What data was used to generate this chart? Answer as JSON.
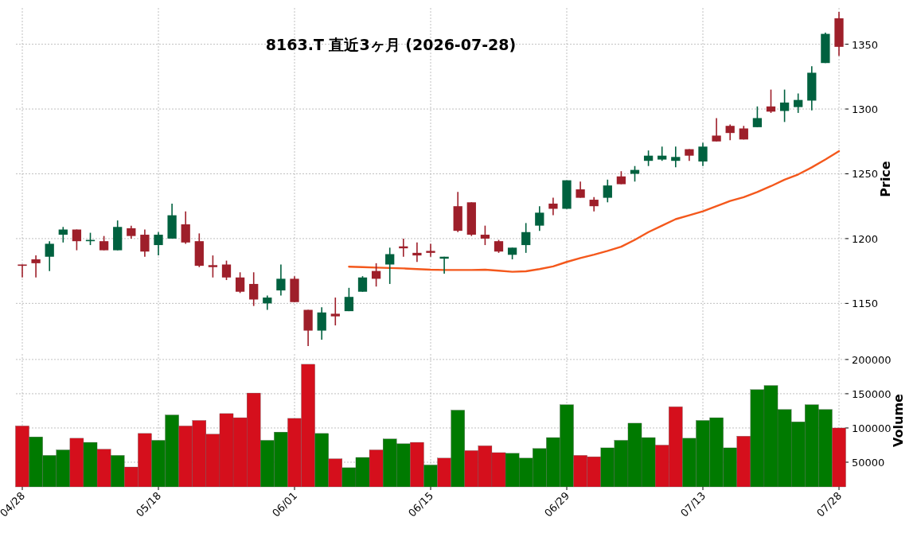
{
  "chart_data": [
    {
      "type": "candlestick",
      "title": "8163.T  直近3ヶ月  (2026-07-28)",
      "ylabel": "Price",
      "ohlc": [
        [
          1180,
          1180,
          1170,
          1179
        ],
        [
          1184,
          1187,
          1170,
          1181
        ],
        [
          1186,
          1198,
          1175,
          1196
        ],
        [
          1203,
          1209,
          1197,
          1207
        ],
        [
          1207,
          1207,
          1191,
          1198
        ],
        [
          1198,
          1204.5,
          1195,
          1199
        ],
        [
          1198,
          1202,
          1191,
          1191
        ],
        [
          1191,
          1214,
          1191,
          1209
        ],
        [
          1208,
          1210,
          1200,
          1202
        ],
        [
          1203,
          1207,
          1186,
          1190
        ],
        [
          1195,
          1205,
          1187,
          1203
        ],
        [
          1200,
          1227,
          1200,
          1218
        ],
        [
          1211,
          1221,
          1196,
          1197
        ],
        [
          1198,
          1204,
          1178,
          1179
        ],
        [
          1179.5,
          1187,
          1170,
          1178
        ],
        [
          1180,
          1183,
          1168,
          1170
        ],
        [
          1170,
          1174,
          1158,
          1159
        ],
        [
          1165,
          1174,
          1148,
          1153
        ],
        [
          1150,
          1156,
          1145,
          1154.5
        ],
        [
          1160,
          1180,
          1156,
          1169
        ],
        [
          1169,
          1171,
          1151,
          1151
        ],
        [
          1145,
          1145,
          1117,
          1129
        ],
        [
          1129,
          1147,
          1122,
          1143
        ],
        [
          1142,
          1154.5,
          1133,
          1140
        ],
        [
          1144,
          1162,
          1144,
          1155
        ],
        [
          1159,
          1171,
          1159,
          1170
        ],
        [
          1175,
          1181,
          1163,
          1169
        ],
        [
          1180,
          1193,
          1165,
          1188
        ],
        [
          1194,
          1200,
          1186,
          1192.5
        ],
        [
          1189,
          1197,
          1182,
          1187
        ],
        [
          1190.5,
          1196,
          1186,
          1189
        ],
        [
          1184.5,
          1186,
          1173,
          1186
        ],
        [
          1225,
          1236,
          1205,
          1206
        ],
        [
          1228,
          1228,
          1202,
          1203
        ],
        [
          1203,
          1210,
          1195,
          1200
        ],
        [
          1198,
          1199,
          1189,
          1190
        ],
        [
          1187.5,
          1193,
          1184,
          1193
        ],
        [
          1195,
          1212,
          1189,
          1205
        ],
        [
          1210,
          1225,
          1206,
          1220
        ],
        [
          1227,
          1231.5,
          1218,
          1223
        ],
        [
          1223,
          1245,
          1223,
          1245
        ],
        [
          1238,
          1244,
          1231.5,
          1231.5
        ],
        [
          1230,
          1232,
          1221,
          1225
        ],
        [
          1231.5,
          1245.5,
          1228,
          1241
        ],
        [
          1248,
          1252,
          1242,
          1242
        ],
        [
          1250,
          1256,
          1244,
          1253
        ],
        [
          1260,
          1268,
          1256,
          1264
        ],
        [
          1261,
          1271,
          1260,
          1264
        ],
        [
          1260,
          1271,
          1255,
          1263
        ],
        [
          1269,
          1269,
          1260,
          1264
        ],
        [
          1259.5,
          1274,
          1256,
          1271
        ],
        [
          1279.5,
          1293,
          1275,
          1275
        ],
        [
          1287,
          1288,
          1276,
          1281.5
        ],
        [
          1285,
          1287,
          1276.5,
          1276.5
        ],
        [
          1286,
          1302,
          1286,
          1293
        ],
        [
          1302,
          1315,
          1297,
          1298
        ],
        [
          1298.5,
          1315,
          1290,
          1305
        ],
        [
          1301.5,
          1312,
          1297,
          1307
        ],
        [
          1306.5,
          1333,
          1299,
          1328
        ],
        [
          1335.5,
          1359,
          1335.5,
          1358
        ],
        [
          1370,
          1375,
          1341,
          1348
        ]
      ],
      "colors": [
        "#9e1f2a",
        "#9e1f2a",
        "#00613f",
        "#00613f",
        "#9e1f2a",
        "#00613f",
        "#9e1f2a",
        "#00613f",
        "#9e1f2a",
        "#9e1f2a",
        "#00613f",
        "#00613f",
        "#9e1f2a",
        "#9e1f2a",
        "#9e1f2a",
        "#9e1f2a",
        "#9e1f2a",
        "#9e1f2a",
        "#00613f",
        "#00613f",
        "#9e1f2a",
        "#9e1f2a",
        "#00613f",
        "#9e1f2a",
        "#00613f",
        "#00613f",
        "#9e1f2a",
        "#00613f",
        "#9e1f2a",
        "#9e1f2a",
        "#9e1f2a",
        "#00613f",
        "#9e1f2a",
        "#9e1f2a",
        "#9e1f2a",
        "#9e1f2a",
        "#00613f",
        "#00613f",
        "#00613f",
        "#9e1f2a",
        "#00613f",
        "#9e1f2a",
        "#9e1f2a",
        "#00613f",
        "#9e1f2a",
        "#00613f",
        "#00613f",
        "#00613f",
        "#00613f",
        "#9e1f2a",
        "#00613f",
        "#9e1f2a",
        "#9e1f2a",
        "#9e1f2a",
        "#00613f",
        "#9e1f2a",
        "#00613f",
        "#00613f",
        "#00613f",
        "#00613f",
        "#9e1f2a"
      ],
      "series": [
        {
          "type": "line",
          "color": "#f4581c",
          "values": [
            null,
            null,
            null,
            null,
            null,
            null,
            null,
            null,
            null,
            null,
            null,
            null,
            null,
            null,
            null,
            null,
            null,
            null,
            null,
            null,
            null,
            null,
            null,
            null,
            1178.3,
            1178,
            1177.6,
            1177.3,
            1177,
            1176.5,
            1176,
            1175.8,
            1175.8,
            1175.8,
            1176,
            1175.2,
            1174.4,
            1174.8,
            1176.5,
            1178.5,
            1182,
            1185,
            1187.6,
            1190.5,
            1193.7,
            1199,
            1205,
            1210,
            1215,
            1218,
            1221,
            1225,
            1229,
            1232,
            1236,
            1240.5,
            1245.5,
            1249.5,
            1255,
            1261,
            1267.5
          ]
        }
      ],
      "ylim": [
        1114,
        1378
      ],
      "yticks": [
        1150,
        1200,
        1250,
        1300,
        1350
      ],
      "grid": true,
      "tick_labels": "y"
    },
    {
      "type": "bar",
      "ylabel": "Volume",
      "categories": [
        "04/28",
        null,
        null,
        null,
        null,
        null,
        null,
        null,
        null,
        null,
        "05/18",
        null,
        null,
        null,
        null,
        null,
        null,
        null,
        null,
        null,
        "06/01",
        null,
        null,
        null,
        null,
        null,
        null,
        null,
        null,
        null,
        "06/15",
        null,
        null,
        null,
        null,
        null,
        null,
        null,
        null,
        null,
        "06/29",
        null,
        null,
        null,
        null,
        null,
        null,
        null,
        null,
        null,
        "07/13",
        null,
        null,
        null,
        null,
        null,
        null,
        null,
        null,
        null,
        "07/28"
      ],
      "values": [
        103000,
        87000,
        60000,
        68000,
        85000,
        79000,
        69000,
        60000,
        43000,
        92000,
        82000,
        119000,
        103000,
        111000,
        91000,
        121000,
        115000,
        151000,
        82000,
        94000,
        114000,
        193000,
        92000,
        55000,
        42000,
        57000,
        68000,
        84000,
        77000,
        79000,
        46000,
        56000,
        126000,
        67000,
        74000,
        64000,
        63000,
        56000,
        70000,
        86000,
        134000,
        60000,
        58000,
        71000,
        82000,
        107000,
        86000,
        75000,
        131000,
        85000,
        111000,
        115000,
        71000,
        88000,
        156000,
        162000,
        127000,
        109000,
        134000,
        127000,
        100000
      ],
      "colors": [
        "#d50f1c",
        "#007a00",
        "#007a00",
        "#007a00",
        "#d50f1c",
        "#007a00",
        "#d50f1c",
        "#007a00",
        "#d50f1c",
        "#d50f1c",
        "#007a00",
        "#007a00",
        "#d50f1c",
        "#d50f1c",
        "#d50f1c",
        "#d50f1c",
        "#d50f1c",
        "#d50f1c",
        "#007a00",
        "#007a00",
        "#d50f1c",
        "#d50f1c",
        "#007a00",
        "#d50f1c",
        "#007a00",
        "#007a00",
        "#d50f1c",
        "#007a00",
        "#007a00",
        "#d50f1c",
        "#007a00",
        "#d50f1c",
        "#007a00",
        "#d50f1c",
        "#d50f1c",
        "#d50f1c",
        "#007a00",
        "#007a00",
        "#007a00",
        "#007a00",
        "#007a00",
        "#d50f1c",
        "#d50f1c",
        "#007a00",
        "#007a00",
        "#007a00",
        "#007a00",
        "#d50f1c",
        "#d50f1c",
        "#007a00",
        "#007a00",
        "#007a00",
        "#007a00",
        "#d50f1c",
        "#007a00",
        "#007a00",
        "#007a00",
        "#007a00",
        "#007a00",
        "#007a00",
        "#d50f1c"
      ],
      "ylim": [
        14000,
        208000
      ],
      "yticks": [
        50000,
        100000,
        150000,
        200000
      ],
      "grid": true
    }
  ]
}
